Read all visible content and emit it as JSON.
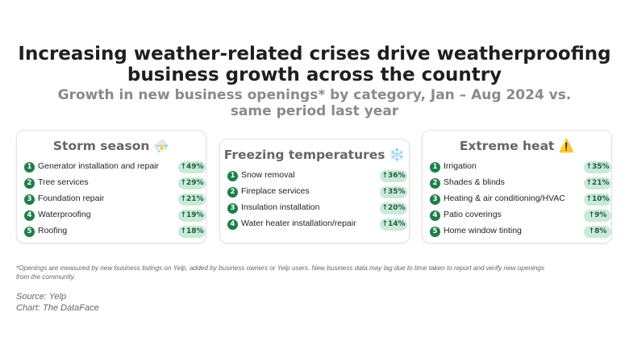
{
  "title": [
    "Increasing weather-related crises drive weatherproofing",
    "business growth across the country"
  ],
  "subtitle": [
    "Growth in new business openings* by category, Jan – Aug 2024 vs.",
    "same period last year"
  ],
  "chart_data": [
    {
      "type": "table",
      "title": "Storm season",
      "emoji": "⛈️",
      "categories": [
        "Generator installation and repair",
        "Tree services",
        "Foundation repair",
        "Waterproofing",
        "Roofing"
      ],
      "values": [
        49,
        29,
        21,
        19,
        18
      ],
      "value_labels": [
        "↑49%",
        "↑29%",
        "↑21%",
        "↑19%",
        "↑18%"
      ],
      "ranks": [
        "1",
        "2",
        "3",
        "4",
        "5"
      ]
    },
    {
      "type": "table",
      "title": "Freezing temperatures",
      "emoji": "❄️",
      "categories": [
        "Snow removal",
        "Fireplace services",
        "Insulation installation",
        "Water heater installation/repair"
      ],
      "values": [
        36,
        35,
        20,
        14
      ],
      "value_labels": [
        "↑36%",
        "↑35%",
        "↑20%",
        "↑14%"
      ],
      "ranks": [
        "1",
        "2",
        "3",
        "4"
      ]
    },
    {
      "type": "table",
      "title": "Extreme heat",
      "emoji": "⚠️",
      "categories": [
        "Irrigation",
        "Shades & blinds",
        "Heating & air conditioning/HVAC",
        "Patio coverings",
        "Home window tinting"
      ],
      "values": [
        35,
        21,
        10,
        9,
        8
      ],
      "value_labels": [
        "↑35%",
        "↑21%",
        "↑10%",
        "↑9%",
        "↑8%"
      ],
      "ranks": [
        "1",
        "2",
        "3",
        "4",
        "5"
      ]
    }
  ],
  "footnote": [
    "*Openings are measured by new business listings on Yelp, added by business owners or Yelp users. New business data may lag due to time taken to report and verify new openings",
    "from the community."
  ],
  "source": "Source: Yelp",
  "credit": "Chart: The DataFace",
  "colors": {
    "rank_badge": "#1c7f4a",
    "pill_bg": "#c9ead8",
    "pill_text": "#1f5e3d",
    "subtitle": "#8a8a8a"
  }
}
